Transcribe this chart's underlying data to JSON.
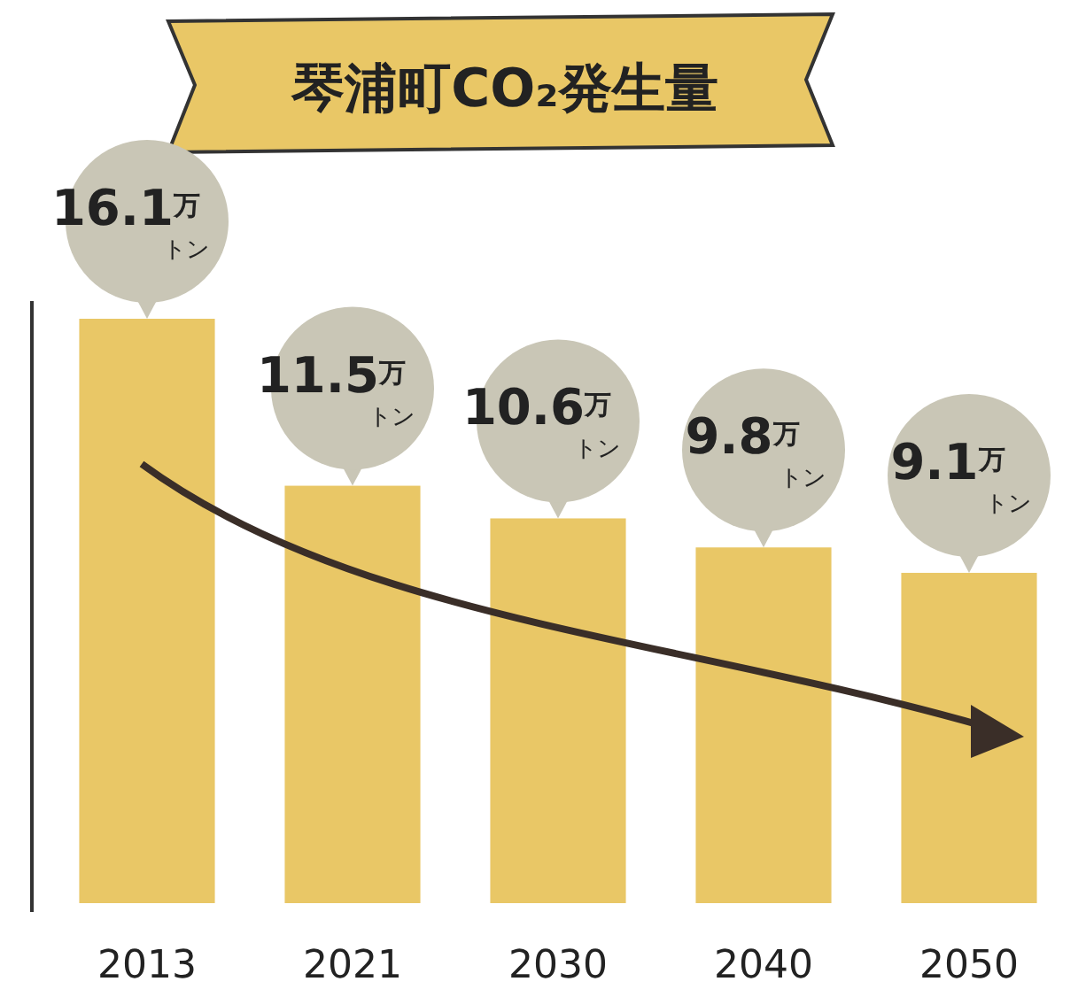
{
  "chart_data": {
    "type": "bar",
    "title": "琴浦町CO₂発生量",
    "categories": [
      "2013",
      "2021",
      "2030",
      "2040",
      "2050"
    ],
    "values": [
      16.1,
      11.5,
      10.6,
      9.8,
      9.1
    ],
    "value_labels": [
      "16.1$^{万}$トン",
      "11.5$^{万}$トン",
      "10.6$^{万}$トン",
      "9.8$^{万}$トン",
      "9.1$^{万}$トン"
    ],
    "color": "#e9c766"
  }
}
